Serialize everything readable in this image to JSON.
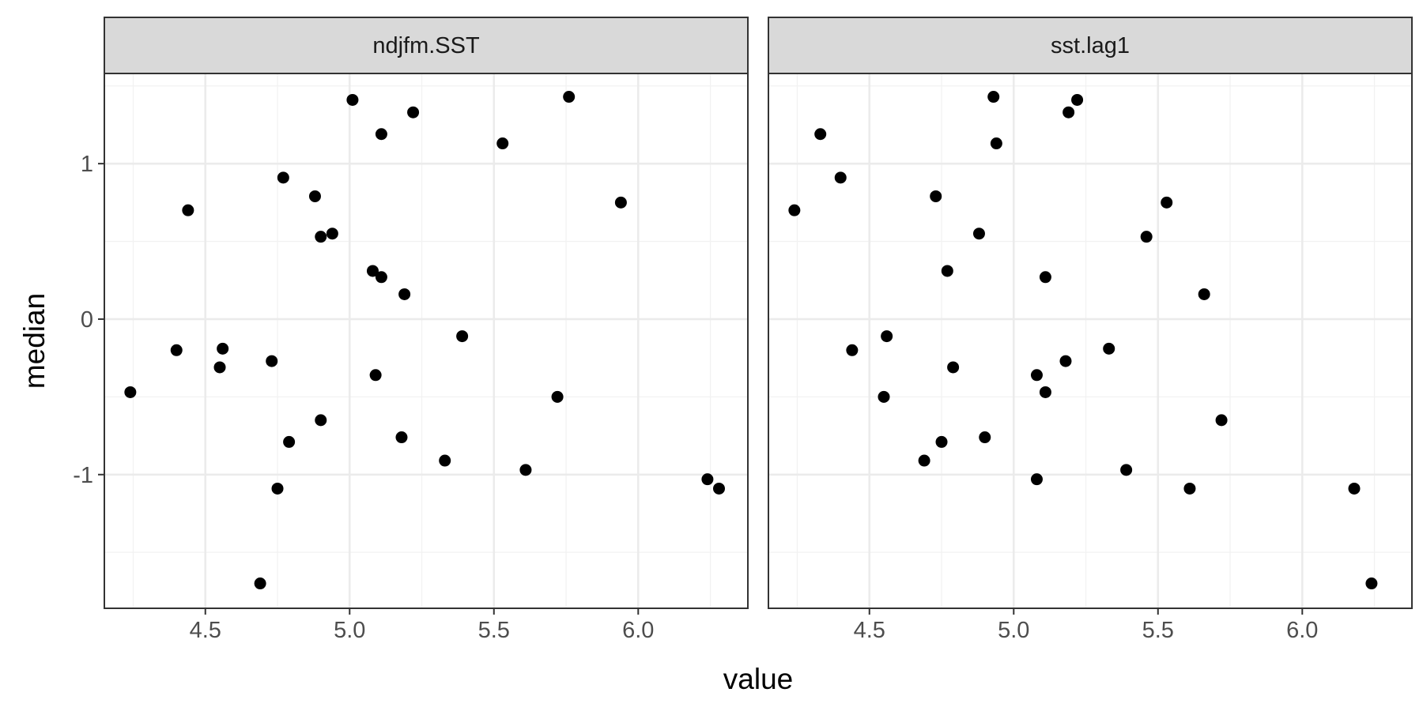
{
  "chart_data": {
    "type": "scatter",
    "xlabel": "value",
    "ylabel": "median",
    "xlim": [
      4.15,
      6.38
    ],
    "ylim": [
      -1.86,
      1.58
    ],
    "x_ticks": [
      4.5,
      5.0,
      5.5,
      6.0
    ],
    "x_tick_labels": [
      "4.5",
      "5.0",
      "5.5",
      "6.0"
    ],
    "y_ticks": [
      -1,
      0,
      1
    ],
    "y_tick_labels": [
      "-1",
      "0",
      "1"
    ],
    "grid": true,
    "point_color": "#000000",
    "facets": [
      {
        "label": "ndjfm.SST",
        "points": [
          [
            4.24,
            -0.47
          ],
          [
            4.4,
            -0.2
          ],
          [
            4.44,
            0.7
          ],
          [
            4.55,
            -0.31
          ],
          [
            4.56,
            -0.19
          ],
          [
            4.69,
            -1.7
          ],
          [
            4.73,
            -0.27
          ],
          [
            4.75,
            -1.09
          ],
          [
            4.77,
            0.91
          ],
          [
            4.79,
            -0.79
          ],
          [
            4.88,
            0.79
          ],
          [
            4.9,
            -0.65
          ],
          [
            4.9,
            0.53
          ],
          [
            4.94,
            0.55
          ],
          [
            5.01,
            1.41
          ],
          [
            5.08,
            0.31
          ],
          [
            5.09,
            -0.36
          ],
          [
            5.11,
            1.19
          ],
          [
            5.11,
            0.27
          ],
          [
            5.18,
            -0.76
          ],
          [
            5.19,
            0.16
          ],
          [
            5.22,
            1.33
          ],
          [
            5.33,
            -0.91
          ],
          [
            5.39,
            -0.11
          ],
          [
            5.53,
            1.13
          ],
          [
            5.61,
            -0.97
          ],
          [
            5.72,
            -0.5
          ],
          [
            5.76,
            1.43
          ],
          [
            5.94,
            0.75
          ],
          [
            6.24,
            -1.03
          ],
          [
            6.28,
            -1.09
          ]
        ]
      },
      {
        "label": "sst.lag1",
        "points": [
          [
            4.24,
            0.7
          ],
          [
            4.33,
            1.19
          ],
          [
            4.4,
            0.91
          ],
          [
            4.44,
            -0.2
          ],
          [
            4.55,
            -0.5
          ],
          [
            4.56,
            -0.11
          ],
          [
            4.69,
            -0.91
          ],
          [
            4.73,
            0.79
          ],
          [
            4.75,
            -0.79
          ],
          [
            4.77,
            0.31
          ],
          [
            4.79,
            -0.31
          ],
          [
            4.88,
            0.55
          ],
          [
            4.9,
            -0.76
          ],
          [
            4.93,
            1.43
          ],
          [
            4.94,
            1.13
          ],
          [
            5.08,
            -0.36
          ],
          [
            5.08,
            -1.03
          ],
          [
            5.11,
            0.27
          ],
          [
            5.11,
            -0.47
          ],
          [
            5.18,
            -0.27
          ],
          [
            5.19,
            1.33
          ],
          [
            5.22,
            1.41
          ],
          [
            5.33,
            -0.19
          ],
          [
            5.39,
            -0.97
          ],
          [
            5.46,
            0.53
          ],
          [
            5.53,
            0.75
          ],
          [
            5.61,
            -1.09
          ],
          [
            5.66,
            0.16
          ],
          [
            5.72,
            -0.65
          ],
          [
            6.18,
            -1.09
          ],
          [
            6.24,
            -1.7
          ]
        ]
      }
    ]
  }
}
